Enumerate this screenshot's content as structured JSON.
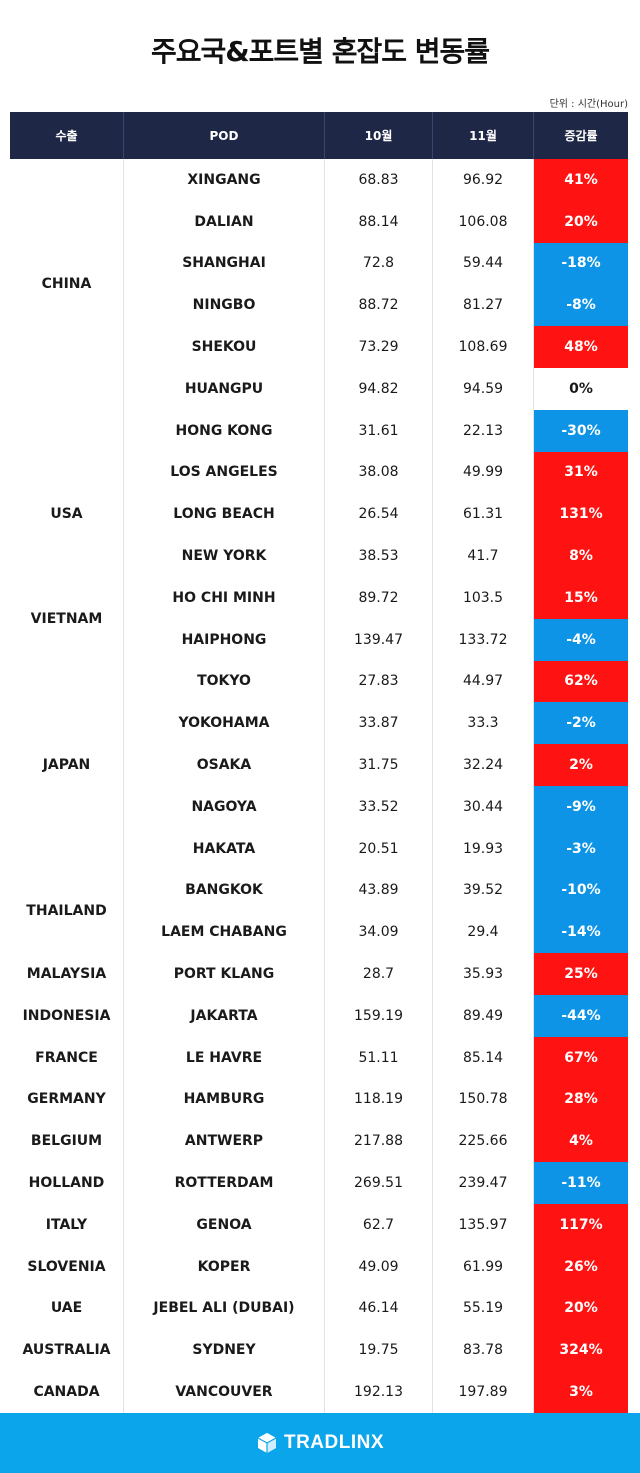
{
  "title": "주요국&포트별 혼잡도 변동률",
  "unit": "단위 : 시간(Hour)",
  "headers": {
    "country": "수출",
    "pod": "POD",
    "oct": "10월",
    "nov": "11월",
    "rate": "증감률"
  },
  "colors": {
    "header_bg": "#1f2747",
    "increase": "#ff1212",
    "decrease": "#0d94e6",
    "footer_bg": "#0aa5ea"
  },
  "countries": [
    {
      "name": "CHINA",
      "span": 6
    },
    {
      "name": "",
      "span": 1
    },
    {
      "name": "USA",
      "span": 3
    },
    {
      "name": "VIETNAM",
      "span": 2
    },
    {
      "name": "JAPAN",
      "span": 5
    },
    {
      "name": "THAILAND",
      "span": 2
    },
    {
      "name": "MALAYSIA",
      "span": 1
    },
    {
      "name": "INDONESIA",
      "span": 1
    },
    {
      "name": "FRANCE",
      "span": 1
    },
    {
      "name": "GERMANY",
      "span": 1
    },
    {
      "name": "BELGIUM",
      "span": 1
    },
    {
      "name": "HOLLAND",
      "span": 1
    },
    {
      "name": "ITALY",
      "span": 1
    },
    {
      "name": "SLOVENIA",
      "span": 1
    },
    {
      "name": "UAE",
      "span": 1
    },
    {
      "name": "AUSTRALIA",
      "span": 1
    },
    {
      "name": "CANADA",
      "span": 1
    }
  ],
  "rows": [
    {
      "pod": "XINGANG",
      "oct": "68.83",
      "nov": "96.92",
      "rate": "41%",
      "dir": "pos"
    },
    {
      "pod": "DALIAN",
      "oct": "88.14",
      "nov": "106.08",
      "rate": "20%",
      "dir": "pos"
    },
    {
      "pod": "SHANGHAI",
      "oct": "72.8",
      "nov": "59.44",
      "rate": "-18%",
      "dir": "neg"
    },
    {
      "pod": "NINGBO",
      "oct": "88.72",
      "nov": "81.27",
      "rate": "-8%",
      "dir": "neg"
    },
    {
      "pod": "SHEKOU",
      "oct": "73.29",
      "nov": "108.69",
      "rate": "48%",
      "dir": "pos"
    },
    {
      "pod": "HUANGPU",
      "oct": "94.82",
      "nov": "94.59",
      "rate": "0%",
      "dir": "zero"
    },
    {
      "pod": "HONG KONG",
      "oct": "31.61",
      "nov": "22.13",
      "rate": "-30%",
      "dir": "neg"
    },
    {
      "pod": "LOS ANGELES",
      "oct": "38.08",
      "nov": "49.99",
      "rate": "31%",
      "dir": "pos"
    },
    {
      "pod": "LONG BEACH",
      "oct": "26.54",
      "nov": "61.31",
      "rate": "131%",
      "dir": "pos"
    },
    {
      "pod": "NEW YORK",
      "oct": "38.53",
      "nov": "41.7",
      "rate": "8%",
      "dir": "pos"
    },
    {
      "pod": "HO CHI MINH",
      "oct": "89.72",
      "nov": "103.5",
      "rate": "15%",
      "dir": "pos"
    },
    {
      "pod": "HAIPHONG",
      "oct": "139.47",
      "nov": "133.72",
      "rate": "-4%",
      "dir": "neg"
    },
    {
      "pod": "TOKYO",
      "oct": "27.83",
      "nov": "44.97",
      "rate": "62%",
      "dir": "pos"
    },
    {
      "pod": "YOKOHAMA",
      "oct": "33.87",
      "nov": "33.3",
      "rate": "-2%",
      "dir": "neg"
    },
    {
      "pod": "OSAKA",
      "oct": "31.75",
      "nov": "32.24",
      "rate": "2%",
      "dir": "pos"
    },
    {
      "pod": "NAGOYA",
      "oct": "33.52",
      "nov": "30.44",
      "rate": "-9%",
      "dir": "neg"
    },
    {
      "pod": "HAKATA",
      "oct": "20.51",
      "nov": "19.93",
      "rate": "-3%",
      "dir": "neg"
    },
    {
      "pod": "BANGKOK",
      "oct": "43.89",
      "nov": "39.52",
      "rate": "-10%",
      "dir": "neg"
    },
    {
      "pod": "LAEM CHABANG",
      "oct": "34.09",
      "nov": "29.4",
      "rate": "-14%",
      "dir": "neg"
    },
    {
      "pod": "PORT KLANG",
      "oct": "28.7",
      "nov": "35.93",
      "rate": "25%",
      "dir": "pos"
    },
    {
      "pod": "JAKARTA",
      "oct": "159.19",
      "nov": "89.49",
      "rate": "-44%",
      "dir": "neg"
    },
    {
      "pod": "LE HAVRE",
      "oct": "51.11",
      "nov": "85.14",
      "rate": "67%",
      "dir": "pos"
    },
    {
      "pod": "HAMBURG",
      "oct": "118.19",
      "nov": "150.78",
      "rate": "28%",
      "dir": "pos"
    },
    {
      "pod": "ANTWERP",
      "oct": "217.88",
      "nov": "225.66",
      "rate": "4%",
      "dir": "pos"
    },
    {
      "pod": "ROTTERDAM",
      "oct": "269.51",
      "nov": "239.47",
      "rate": "-11%",
      "dir": "neg"
    },
    {
      "pod": "GENOA",
      "oct": "62.7",
      "nov": "135.97",
      "rate": "117%",
      "dir": "pos"
    },
    {
      "pod": "KOPER",
      "oct": "49.09",
      "nov": "61.99",
      "rate": "26%",
      "dir": "pos"
    },
    {
      "pod": "JEBEL ALI (DUBAI)",
      "oct": "46.14",
      "nov": "55.19",
      "rate": "20%",
      "dir": "pos"
    },
    {
      "pod": "SYDNEY",
      "oct": "19.75",
      "nov": "83.78",
      "rate": "324%",
      "dir": "pos"
    },
    {
      "pod": "VANCOUVER",
      "oct": "192.13",
      "nov": "197.89",
      "rate": "3%",
      "dir": "pos"
    }
  ],
  "footer": {
    "brand": "TRADLINX",
    "logo_icon": "tradlinx-cube-icon"
  }
}
